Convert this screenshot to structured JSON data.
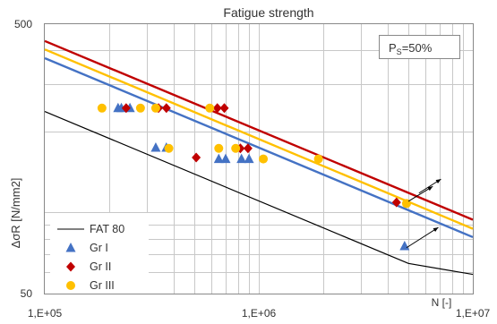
{
  "chart_data": {
    "type": "scatter",
    "title": "Fatigue strength",
    "xlabel": "N [-]",
    "ylabel": "ΔσR [N/mm2]",
    "x_scale": "log",
    "y_scale": "log",
    "xlim": [
      100000,
      10000000
    ],
    "ylim": [
      50,
      500
    ],
    "x_ticks": [
      {
        "value": 100000,
        "label": "1,E+05"
      },
      {
        "value": 1000000,
        "label": "1,E+06"
      },
      {
        "value": 10000000,
        "label": "1,E+07"
      }
    ],
    "y_ticks": [
      {
        "value": 50,
        "label": "50"
      },
      {
        "value": 500,
        "label": "500"
      }
    ],
    "annotation": {
      "prefix": "P",
      "subscript": "S",
      "suffix": "=50%"
    },
    "grid": true,
    "legend_position": "bottom-left",
    "fat_line": {
      "name": "FAT 80",
      "color": "#000000",
      "points": [
        [
          100000,
          237
        ],
        [
          5000000,
          64.7
        ],
        [
          10000000,
          58.9
        ]
      ]
    },
    "series": [
      {
        "name": "Gr I",
        "marker": "triangle",
        "color": "#4472c4",
        "points": [
          [
            220000,
            244
          ],
          [
            228000,
            244
          ],
          [
            250000,
            244
          ],
          [
            330000,
            174
          ],
          [
            370000,
            174
          ],
          [
            650000,
            158
          ],
          [
            700000,
            158
          ],
          [
            830000,
            158
          ],
          [
            900000,
            158
          ],
          [
            4800000,
            75
          ]
        ],
        "mean_curve": [
          [
            100000,
            374
          ],
          [
            10000000,
            81
          ]
        ]
      },
      {
        "name": "Gr II",
        "marker": "diamond",
        "color": "#c00000",
        "points": [
          [
            240000,
            244
          ],
          [
            340000,
            244
          ],
          [
            370000,
            244
          ],
          [
            510000,
            160
          ],
          [
            640000,
            244
          ],
          [
            690000,
            244
          ],
          [
            820000,
            173
          ],
          [
            890000,
            173
          ],
          [
            4400000,
            109
          ]
        ],
        "mean_curve": [
          [
            100000,
            433
          ],
          [
            10000000,
            94
          ]
        ]
      },
      {
        "name": "Gr III",
        "marker": "circle",
        "color": "#ffc000",
        "points": [
          [
            185000,
            244
          ],
          [
            280000,
            244
          ],
          [
            330000,
            244
          ],
          [
            380000,
            173
          ],
          [
            590000,
            244
          ],
          [
            650000,
            173
          ],
          [
            780000,
            173
          ],
          [
            1050000,
            158
          ],
          [
            1900000,
            158
          ],
          [
            4900000,
            108
          ]
        ],
        "mean_curve": [
          [
            100000,
            403
          ],
          [
            10000000,
            87
          ]
        ]
      }
    ],
    "runout_arrows": [
      {
        "from": [
          5000000,
          110
        ],
        "to": [
          6500000,
          125
        ]
      },
      {
        "from": [
          5600000,
          118
        ],
        "to": [
          7100000,
          133
        ]
      },
      {
        "from": [
          4900000,
          74
        ],
        "to": [
          6900000,
          88
        ]
      }
    ]
  }
}
